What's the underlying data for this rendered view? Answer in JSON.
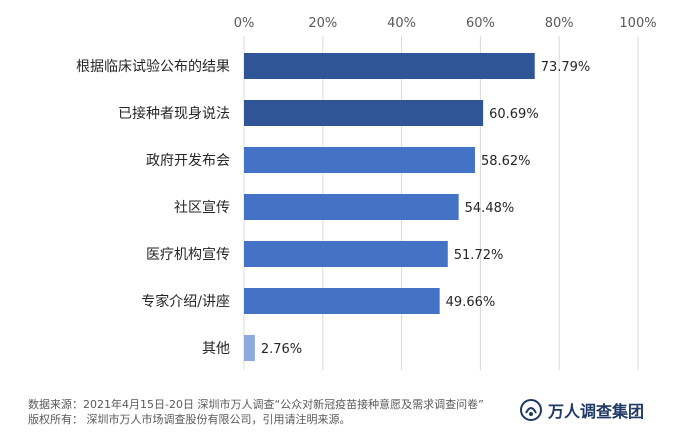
{
  "chart_data": {
    "type": "bar",
    "orientation": "horizontal",
    "categories": [
      "根据临床试验公布的结果",
      "已接种者现身说法",
      "政府开发布会",
      "社区宣传",
      "医疗机构宣传",
      "专家介绍/讲座",
      "其他"
    ],
    "values": [
      73.79,
      60.69,
      58.62,
      54.48,
      51.72,
      49.66,
      2.76
    ],
    "data_labels": [
      "73.79%",
      "60.69%",
      "58.62%",
      "54.48%",
      "51.72%",
      "49.66%",
      "2.76%"
    ],
    "x_ticks": [
      "0%",
      "20%",
      "40%",
      "60%",
      "80%",
      "100%"
    ],
    "xlim": [
      0,
      100
    ],
    "axis_position": "top",
    "grid": true,
    "bar_colors": [
      "#2f5597",
      "#2f5597",
      "#4472c4",
      "#4472c4",
      "#4472c4",
      "#4472c4",
      "#8faadc"
    ]
  },
  "footer": {
    "source": "数据来源：2021年4月15日-20日 深圳市万人调查“公众对新冠疫苗接种意愿及需求调查问卷”",
    "copyright": "版权所有：    深圳市万人市场调查股份有限公司，引用请注明来源。"
  },
  "brand": {
    "name": "万人调查集团",
    "logo_icon": "brand-logo-icon"
  }
}
